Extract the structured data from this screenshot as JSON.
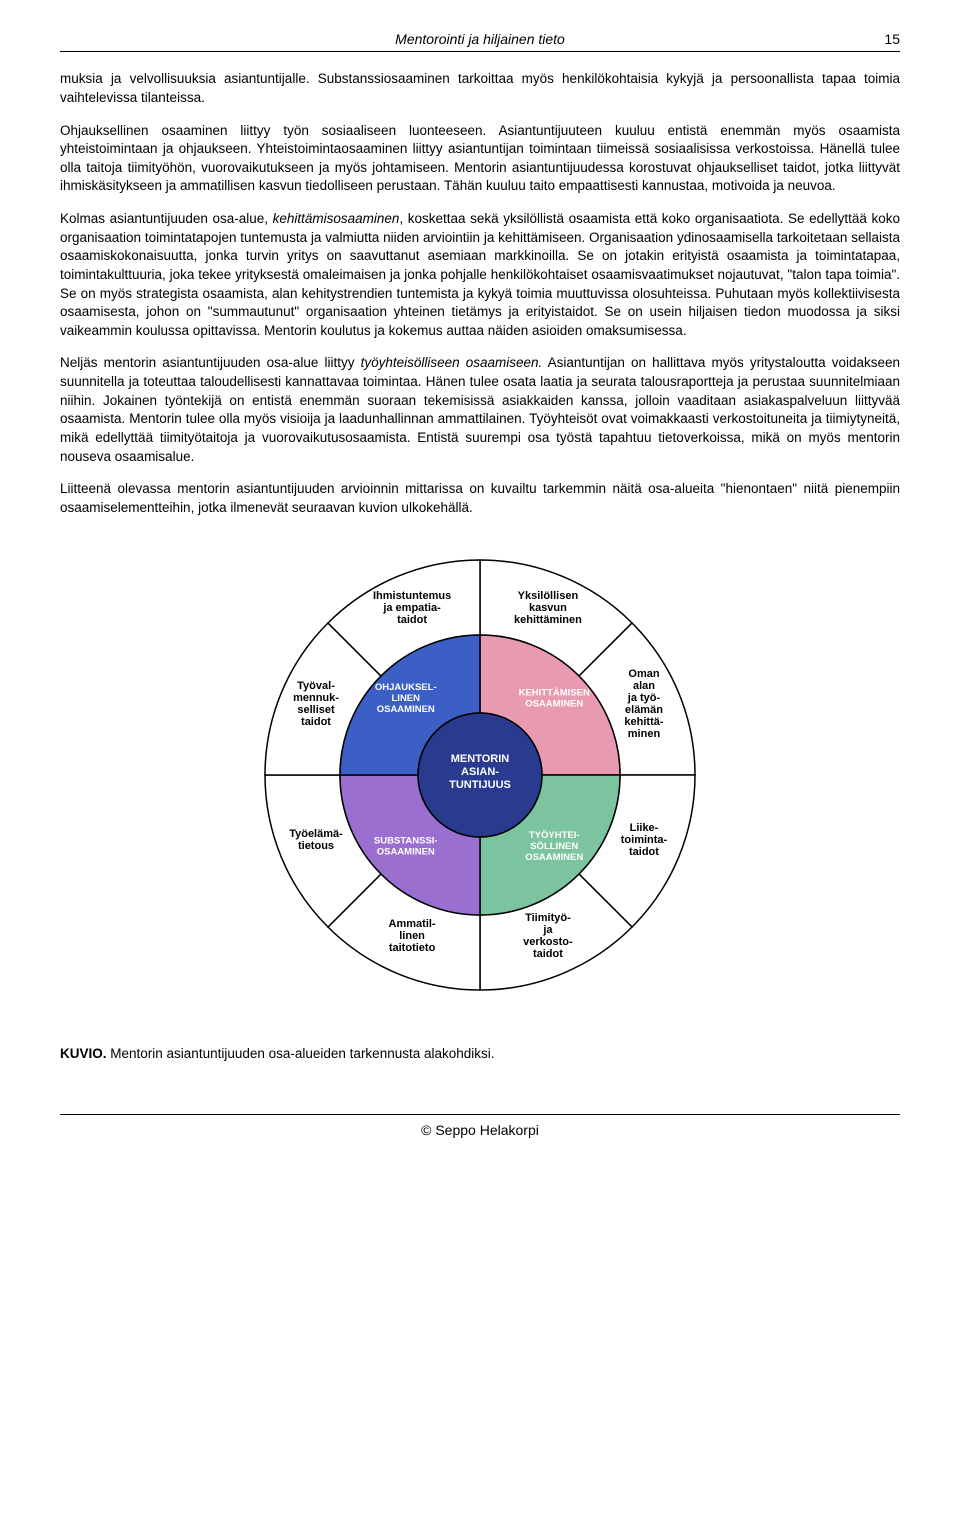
{
  "header": {
    "title": "Mentorointi ja hiljainen tieto",
    "page_number": "15"
  },
  "paragraphs": {
    "p1": "muksia ja velvollisuuksia asiantuntijalle. Substanssiosaaminen tarkoittaa myös henkilökohtaisia kykyjä ja persoonallista tapaa toimia vaihtelevissa tilanteissa.",
    "p2": "Ohjauksellinen osaaminen liittyy työn sosiaaliseen luonteeseen. Asiantuntijuuteen kuuluu entistä enemmän myös osaamista yhteistoimintaan ja ohjaukseen. Yhteistoimintaosaaminen liittyy asiantuntijan toimintaan tiimeissä sosiaalisissa verkostoissa. Hänellä tulee olla taitoja tiimityöhön, vuorovaikutukseen ja myös johtamiseen. Mentorin asiantuntijuudessa korostuvat ohjaukselliset taidot, jotka liittyvät ihmiskäsitykseen ja ammatillisen kasvun tiedolliseen perustaan. Tähän kuuluu taito empaattisesti kannustaa, motivoida ja neuvoa.",
    "p3a": "Kolmas asiantuntijuuden osa-alue, ",
    "p3i": "kehittämisosaaminen",
    "p3b": ", koskettaa sekä yksilöllistä osaamista että koko organisaatiota. Se edellyttää koko organisaation toimintatapojen tuntemusta ja valmiutta niiden arviointiin ja kehittämiseen. Organisaation ydinosaamisella tarkoitetaan sellaista osaamiskokonaisuutta, jonka turvin yritys on saavuttanut asemiaan markkinoilla. Se on jotakin erityistä osaamista ja toimintatapaa, toimintakulttuuria, joka tekee yrityksestä omaleimaisen ja jonka pohjalle henkilökohtaiset osaamisvaatimukset nojautuvat, \"talon tapa toimia\". Se on myös strategista osaamista, alan kehitystrendien tuntemista ja kykyä toimia muuttuvissa olosuhteissa. Puhutaan myös kollektiivisesta osaamisesta, johon on \"summautunut\" organisaation yhteinen tietämys ja erityistaidot. Se on usein hiljaisen tiedon muodossa ja siksi vaikeammin koulussa opittavissa. Mentorin koulutus ja kokemus auttaa näiden asioiden omaksumisessa.",
    "p4a": "Neljäs mentorin asiantuntijuuden osa-alue liittyy ",
    "p4i": "työyhteisölliseen osaamiseen.",
    "p4b": " Asiantuntijan on hallittava myös yritystaloutta voidakseen suunnitella ja toteuttaa taloudellisesti kannattavaa toimintaa. Hänen tulee osata laatia ja seurata talousraportteja ja perustaa suunnitelmiaan niihin. Jokainen työntekijä on entistä enemmän suoraan tekemisissä asiakkaiden kanssa, jolloin vaaditaan asiakaspalveluun liittyvää osaamista. Mentorin tulee olla myös visioija ja laadunhallinnan ammattilainen. Työyhteisöt ovat voimakkaasti verkostoituneita ja tiimiytyneitä, mikä edellyttää tiimityötaitoja ja vuorovaikutusosaamista. Entistä suurempi osa työstä tapahtuu tietoverkoissa, mikä on myös mentorin nouseva osaamisalue.",
    "p5": "Liitteenä olevassa mentorin asiantuntijuuden arvioinnin mittarissa on kuvailtu tarkemmin näitä osa-alueita \"hienontaen\" niitä pienempiin osaamiselementteihin, jotka ilmenevät seuraavan kuvion ulkokehällä."
  },
  "diagram": {
    "center": {
      "line1": "MENTORIN",
      "line2": "ASIAN-",
      "line3": "TUNTIJUUS",
      "bg": "#2a3b8f",
      "text": "#ffffff"
    },
    "inner": [
      {
        "line1": "KEHITTÄMISEN",
        "line2": "OSAAMINEN",
        "bg": "#e89ab0"
      },
      {
        "line1": "TYÖYHTEI-",
        "line2": "SÖLLINEN",
        "line3": "OSAAMINEN",
        "bg": "#7cc49f"
      },
      {
        "line1": "SUBSTANSSI-",
        "line2": "OSAAMINEN",
        "bg": "#9b6fcf"
      },
      {
        "line1": "OHJAUKSEL-",
        "line2": "LINEN",
        "line3": "OSAAMINEN",
        "bg": "#3b5fc4"
      }
    ],
    "outer": [
      {
        "t": "Yksilöllisen\nkasvun\nkehittäminen"
      },
      {
        "t": "Oman\nalan\nja työ-\nelämän\nkehittä-\nminen"
      },
      {
        "t": "Liike-\ntoiminta-\ntaidot"
      },
      {
        "t": "Tiimityö-\nja\nverkosto-\ntaidot"
      },
      {
        "t": "Ammatil-\nlinen\ntaitotieto"
      },
      {
        "t": "Työelämä-\ntietous"
      },
      {
        "t": "Työval-\nmennuk-\nselliset\ntaidot"
      },
      {
        "t": "Ihmistuntemus\nja empatia-\ntaidot"
      }
    ],
    "colors": {
      "outer_bg": "#ffffff",
      "line": "#000000"
    }
  },
  "caption": {
    "bold": "KUVIO.",
    "rest": " Mentorin asiantuntijuuden osa-alueiden tarkennusta alakohdiksi."
  },
  "footer": "© Seppo Helakorpi"
}
